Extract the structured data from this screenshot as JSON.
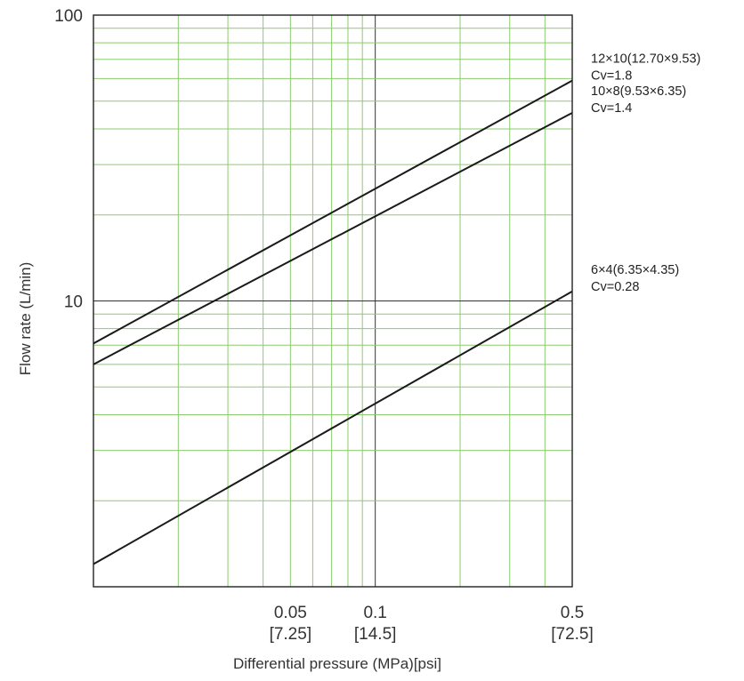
{
  "chart_data": {
    "type": "line",
    "title": "",
    "xlabel": "Differential pressure (MPa)[psi]",
    "ylabel": "Flow rate (L/min)",
    "x_scale": "log",
    "y_scale": "log",
    "xlim": [
      0.01,
      0.5
    ],
    "ylim": [
      1,
      100
    ],
    "grid": true,
    "x_ticks": [
      {
        "value": 0.05,
        "label": "0.05",
        "sublabel": "[7.25]"
      },
      {
        "value": 0.1,
        "label": "0.1",
        "sublabel": "[14.5]"
      },
      {
        "value": 0.5,
        "label": "0.5",
        "sublabel": "[72.5]"
      }
    ],
    "y_ticks": [
      {
        "value": 10,
        "label": "10"
      },
      {
        "value": 100,
        "label": "100"
      }
    ],
    "series": [
      {
        "name": "12×10(12.70×9.53)",
        "cv": "Cv=1.8",
        "x": [
          0.01,
          0.5
        ],
        "y": [
          7.1,
          59.0
        ]
      },
      {
        "name": "10×8(9.53×6.35)",
        "cv": "Cv=1.4",
        "x": [
          0.01,
          0.5
        ],
        "y": [
          6.0,
          45.5
        ]
      },
      {
        "name": "6×4(6.35×4.35)",
        "cv": "Cv=0.28",
        "x": [
          0.01,
          0.5
        ],
        "y": [
          1.2,
          10.8
        ]
      }
    ],
    "colors": {
      "grid": "#8ccc6e",
      "major_grid": "#333333",
      "line": "#1a1a1a"
    }
  }
}
